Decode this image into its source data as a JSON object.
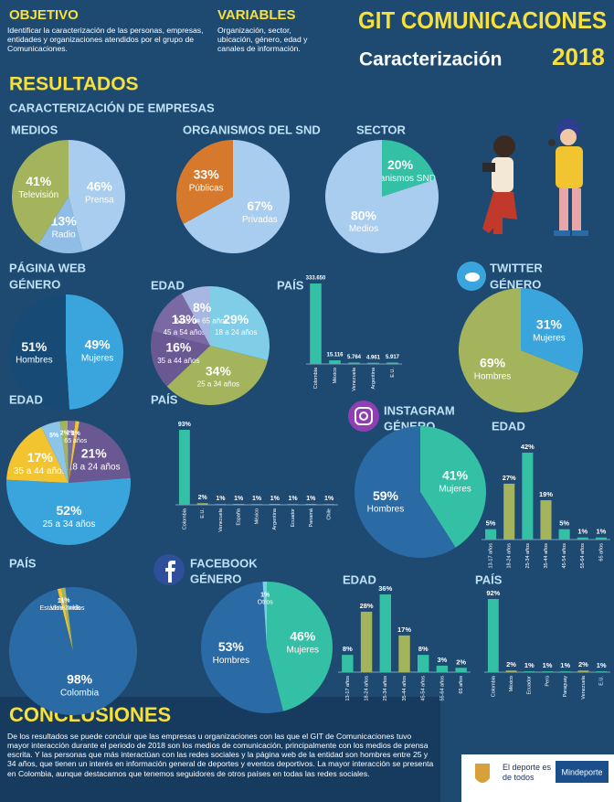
{
  "header": {
    "objective_title": "OBJETIVO",
    "objective_text": "Identificar la caracterización de las personas, empresas, entidades y organizaciones atendidos por el grupo de Comunicaciones.",
    "variables_title": "VARIABLES",
    "variables_text": "Organización, sector, ubicación, género, edad y canales de información.",
    "title": "GIT COMUNICACIONES",
    "subtitle": "Caracterización",
    "year": "2018"
  },
  "results": {
    "title": "RESULTADOS",
    "subtitle": "CARACTERIZACIÓN DE EMPRESAS"
  },
  "chart_data": [
    {
      "type": "pie",
      "title": "MEDIOS",
      "categories": [
        "Prensa",
        "Radio",
        "Televisión"
      ],
      "values": [
        46,
        13,
        41
      ],
      "value_labels": [
        "46%",
        "13%",
        "41%"
      ],
      "colors": [
        "#a9cdee",
        "#8fbde6",
        "#a3b45c"
      ]
    },
    {
      "type": "pie",
      "title": "ORGANISMOS DEL SND",
      "categories": [
        "Privadas",
        "Públicas"
      ],
      "values": [
        67,
        33
      ],
      "value_labels": [
        "67%",
        "33%"
      ],
      "colors": [
        "#a9cdee",
        "#d6792d"
      ]
    },
    {
      "type": "pie",
      "title": "SECTOR",
      "categories": [
        "Organismos SND",
        "Medios"
      ],
      "values": [
        20,
        80
      ],
      "value_labels": [
        "20%",
        "80%"
      ],
      "colors": [
        "#34c0a4",
        "#a9cdee"
      ]
    },
    {
      "type": "pie",
      "heading": "PÁGINA WEB",
      "title": "GÉNERO",
      "categories": [
        "Mujeres",
        "Hombres"
      ],
      "values": [
        49,
        51
      ],
      "value_labels": [
        "49%",
        "51%"
      ],
      "colors": [
        "#3aa5dc",
        "#174a75"
      ]
    },
    {
      "type": "pie",
      "title": "EDAD",
      "categories": [
        "18 a 24 años",
        "25 a 34 años",
        "35 a 44 años",
        "45 a 54 años",
        "Más de 65 años"
      ],
      "values": [
        29,
        34,
        16,
        13,
        8
      ],
      "value_labels": [
        "29%",
        "34%",
        "16%",
        "13%",
        "8%"
      ],
      "colors": [
        "#7fcde6",
        "#a3b45c",
        "#6a5893",
        "#7a69a3",
        "#a8b7e2"
      ]
    },
    {
      "type": "bar",
      "title": "PAÍS",
      "categories": [
        "Colombia",
        "México",
        "Venezuela",
        "Argentina",
        "E.U."
      ],
      "values": [
        333650,
        15116,
        5764,
        4961,
        5917
      ],
      "value_labels": [
        "333.650",
        "15.116",
        "5.764",
        "4.961",
        "5.917"
      ],
      "colors": [
        "#34c0a4",
        "#34c0a4",
        "#34c0a4",
        "#34c0a4",
        "#34c0a4"
      ]
    },
    {
      "type": "pie",
      "heading": "TWITTER",
      "title": "GÉNERO",
      "categories": [
        "Mujeres",
        "Hombres"
      ],
      "values": [
        31,
        69
      ],
      "value_labels": [
        "31%",
        "69%"
      ],
      "colors": [
        "#3aa5dc",
        "#a3b45c"
      ]
    },
    {
      "type": "pie",
      "title": "EDAD",
      "categories": [
        "18 a 24 años",
        "25 a 34 años",
        "35 a 44 años",
        null,
        null,
        null,
        "65 años"
      ],
      "values": [
        21,
        52,
        17,
        5,
        2,
        2,
        1
      ],
      "value_labels": [
        "21%",
        "52%",
        "17%",
        "5%",
        "2%",
        "2%",
        "1%"
      ],
      "colors": [
        "#6a5893",
        "#3aa5dc",
        "#f2c530",
        "#8cc5e8",
        "#a3b45c",
        "#7a69a3",
        "#f2c530"
      ]
    },
    {
      "type": "bar",
      "title": "PAÍS",
      "categories": [
        "Colombia",
        "E.U.",
        "Venezuela",
        "España",
        "México",
        "Argentina",
        "Ecuador",
        "Panamá",
        "Chile"
      ],
      "values": [
        93,
        2,
        1,
        1,
        1,
        1,
        1,
        1,
        1
      ],
      "value_labels": [
        "93%",
        "2%",
        "1%",
        "1%",
        "1%",
        "1%",
        "1%",
        "1%",
        "1%"
      ],
      "colors": [
        "#34c0a4",
        "#a3b45c",
        "#34c0a4",
        "#a3b45c",
        "#34c0a4",
        "#a3b45c",
        "#34c0a4",
        "#a3b45c",
        "#34c0a4"
      ]
    },
    {
      "type": "pie",
      "heading": "INSTAGRAM",
      "title": "GÉNERO",
      "categories": [
        "Mujeres",
        "Hombres"
      ],
      "values": [
        41,
        59
      ],
      "value_labels": [
        "41%",
        "59%"
      ],
      "colors": [
        "#34c0a4",
        "#2a6aa5"
      ]
    },
    {
      "type": "bar",
      "title": "EDAD",
      "categories": [
        "13-17 años",
        "18-24 años",
        "25-34 años",
        "35-44 años",
        "45-54 años",
        "55-64 años",
        "65 años"
      ],
      "values": [
        5,
        27,
        42,
        19,
        5,
        1,
        1
      ],
      "value_labels": [
        "5%",
        "27%",
        "42%",
        "19%",
        "5%",
        "1%",
        "1%"
      ],
      "colors": [
        "#34c0a4",
        "#a3b45c",
        "#34c0a4",
        "#a3b45c",
        "#34c0a4",
        "#34c0a4",
        "#34c0a4"
      ]
    },
    {
      "type": "pie",
      "title": "PAÍS",
      "categories": [
        "Colombia",
        "Estados Unidos",
        "Venezuela"
      ],
      "values": [
        98,
        1,
        1
      ],
      "value_labels": [
        "98%",
        "1%",
        "1%"
      ],
      "colors": [
        "#2a6aa5",
        "#f2c530",
        "#a3b45c"
      ]
    },
    {
      "type": "pie",
      "heading": "FACEBOOK",
      "title": "GÉNERO",
      "categories": [
        "Mujeres",
        "Hombres",
        "Otros"
      ],
      "values": [
        46,
        53,
        1
      ],
      "value_labels": [
        "46%",
        "53%",
        "1%"
      ],
      "colors": [
        "#34c0a4",
        "#2a6aa5",
        "#7fcde6"
      ]
    },
    {
      "type": "bar",
      "title": "EDAD",
      "categories": [
        "13-17 años",
        "18-24 años",
        "25-34 años",
        "35-44 años",
        "45-54 años",
        "55-64 años",
        "65 años"
      ],
      "values": [
        8,
        28,
        36,
        17,
        8,
        3,
        2
      ],
      "value_labels": [
        "8%",
        "28%",
        "36%",
        "17%",
        "8%",
        "3%",
        "2%"
      ],
      "colors": [
        "#34c0a4",
        "#a3b45c",
        "#34c0a4",
        "#a3b45c",
        "#34c0a4",
        "#34c0a4",
        "#34c0a4"
      ]
    },
    {
      "type": "bar",
      "title": "PAÍS",
      "categories": [
        "Colombia",
        "México",
        "Ecuador",
        "Perú",
        "Paraguay",
        "Venezuela",
        "E.U."
      ],
      "values": [
        92,
        2,
        1,
        1,
        1,
        2,
        1
      ],
      "value_labels": [
        "92%",
        "2%",
        "1%",
        "1%",
        "1%",
        "2%",
        "1%"
      ],
      "colors": [
        "#34c0a4",
        "#a3b45c",
        "#34c0a4",
        "#34c0a4",
        "#34c0a4",
        "#a3b45c",
        "#34c0a4"
      ]
    }
  ],
  "conclusions": {
    "title": "CONCLUSIONES",
    "text": "De los resultados se puede concluir que las empresas u organizaciones con las que el GIT de Comunicaciones tuvo mayor interacción durante el periodo de 2018 son los medios de comunicación, principalmente con los medios de prensa escrita. Y las personas que más interactúan con las redes sociales y la página web de la entidad son hombres entre 25 y 34 años, que tienen un interés en información general de deportes y eventos deportivos. La mayor interacción se presenta en Colombia, aunque destacamos que tenemos seguidores de otros países en todas las redes sociales."
  },
  "footer": {
    "slogan": "El deporte es de todos",
    "brand": "Mindeporte"
  }
}
